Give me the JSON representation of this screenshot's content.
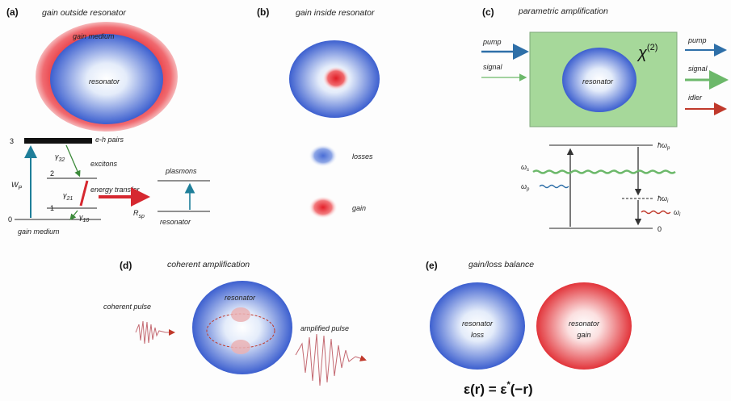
{
  "panels": {
    "a": {
      "tag": "(a)",
      "title": "gain outside resonator",
      "gain_medium_ring": "gain medium",
      "resonator": "resonator",
      "eh_pairs": "e-h pairs",
      "excitons": "excitons",
      "energy_transfer": "energy transfer",
      "plasmons": "plasmons",
      "resonator_bottom": "resonator",
      "gain_medium_bottom": "gain medium",
      "levels": [
        "3",
        "2",
        "1",
        "0"
      ],
      "pump_rate": "W",
      "pump_rate_sub": "P",
      "gamma32": "γ",
      "gamma32_sub": "32",
      "gamma21": "γ",
      "gamma21_sub": "21",
      "gamma10": "γ",
      "gamma10_sub": "10",
      "r_sp": "R",
      "r_sp_sub": "sp"
    },
    "b": {
      "tag": "(b)",
      "title": "gain inside resonator",
      "losses": "losses",
      "gain": "gain"
    },
    "c": {
      "tag": "(c)",
      "title": "parametric amplification",
      "pump_in": "pump",
      "signal_in": "signal",
      "resonator": "resonator",
      "chi": "χ",
      "chi_sup": "(2)",
      "pump_out": "pump",
      "signal_out": "signal",
      "idler_out": "idler",
      "hw_p": "ħω",
      "hw_p_sub": "p",
      "w_s": "ω",
      "w_s_sub": "s",
      "w_p": "ω",
      "w_p_sub": "p",
      "hw_i": "ħω",
      "hw_i_sub": "i",
      "w_i": "ω",
      "w_i_sub": "i",
      "zero": "0"
    },
    "d": {
      "tag": "(d)",
      "title": "coherent amplification",
      "coherent_pulse": "coherent pulse",
      "resonator": "resonator",
      "amplified_pulse": "amplified pulse"
    },
    "e": {
      "tag": "(e)",
      "title": "gain/loss balance",
      "left_line1": "resonator",
      "left_line2": "loss",
      "right_line1": "resonator",
      "right_line2": "gain",
      "eq_lhs": "ε(r) = ε",
      "eq_star": "*",
      "eq_rhs": "(−r)"
    }
  },
  "colors": {
    "loss_blue": "#5b78d6",
    "gain_red": "#e8343c",
    "green_box": "#a6d89a",
    "pump_arrow": "#2e6fa8",
    "signal_arrow": "#6cb86a",
    "idler_arrow": "#c0392b"
  }
}
